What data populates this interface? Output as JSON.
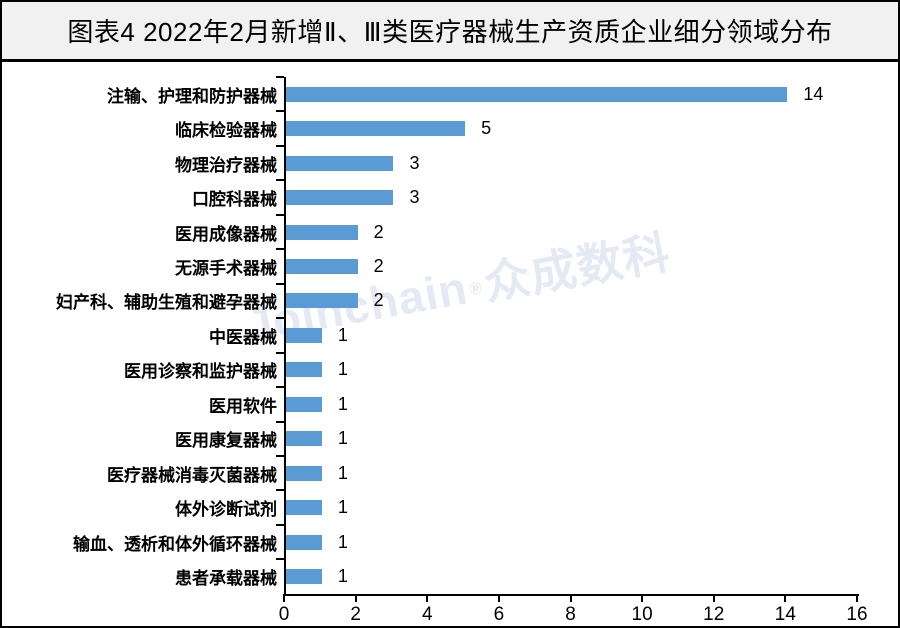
{
  "page": {
    "background": "#ffffff",
    "frame_color": "#000000"
  },
  "header": {
    "title": "图表4  2022年2月新增Ⅱ、Ⅲ类医疗器械生产资质企业细分领域分布",
    "background": "#f1f1f1",
    "text_color": "#000000"
  },
  "watermark": {
    "text_latin": "Joinchain",
    "registered_mark": "®",
    "text_cjk": "众成数科",
    "color": "#e4e9f3"
  },
  "chart_data": {
    "type": "bar",
    "orientation": "horizontal",
    "title": "图表4  2022年2月新增Ⅱ、Ⅲ类医疗器械生产资质企业细分领域分布",
    "categories": [
      "注输、护理和防护器械",
      "临床检验器械",
      "物理治疗器械",
      "口腔科器械",
      "医用成像器械",
      "无源手术器械",
      "妇产科、辅助生殖和避孕器械",
      "中医器械",
      "医用诊察和监护器械",
      "医用软件",
      "医用康复器械",
      "医疗器械消毒灭菌器械",
      "体外诊断试剂",
      "输血、透析和体外循环器械",
      "患者承载器械"
    ],
    "values": [
      14,
      5,
      3,
      3,
      2,
      2,
      2,
      1,
      1,
      1,
      1,
      1,
      1,
      1,
      1
    ],
    "xlabel": "",
    "ylabel": "",
    "xlim": [
      0,
      16
    ],
    "x_ticks": [
      0,
      2,
      4,
      6,
      8,
      10,
      12,
      14,
      16
    ],
    "bar_color": "#5b9bd5",
    "value_labels_shown": true,
    "grid": false,
    "legend": false
  }
}
